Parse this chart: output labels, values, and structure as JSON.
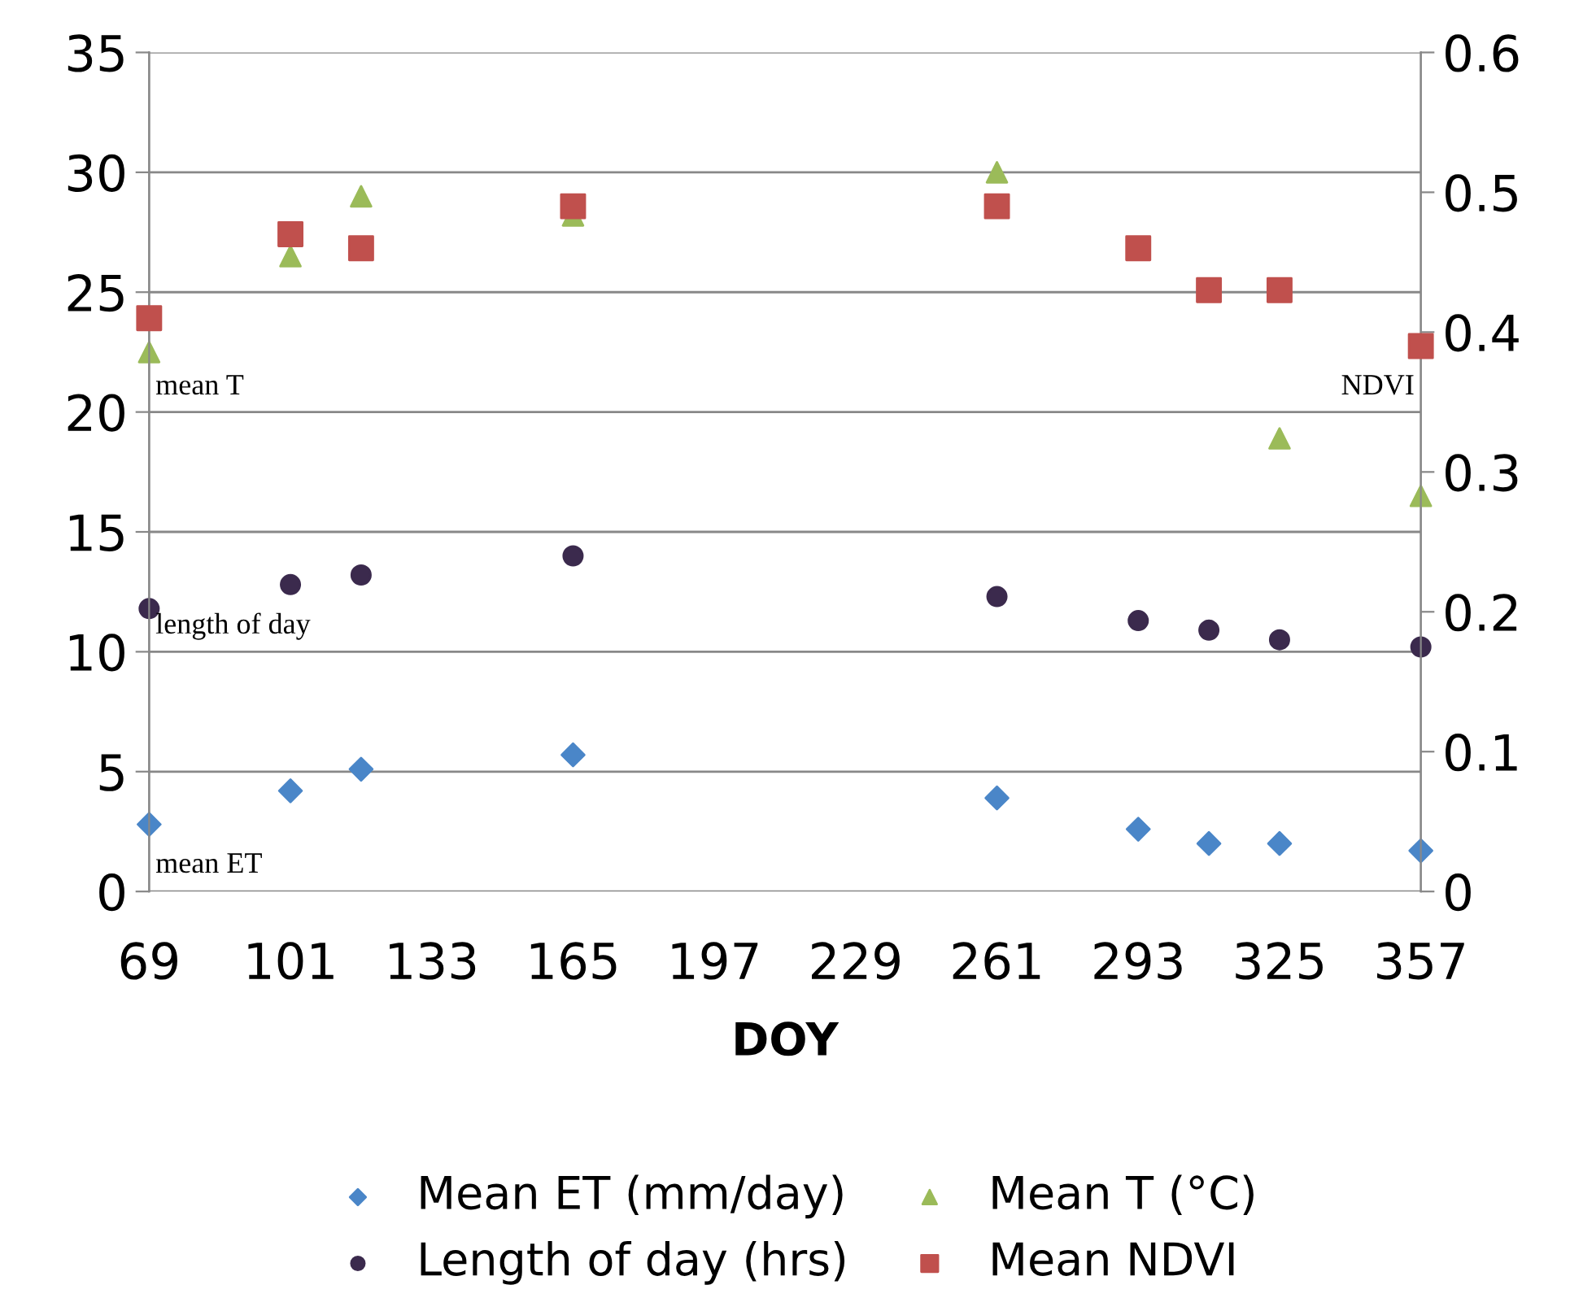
{
  "chart_data": {
    "type": "scatter",
    "xlabel": "DOY",
    "x": [
      69,
      101,
      117,
      165,
      261,
      293,
      309,
      325,
      357
    ],
    "series": [
      {
        "name": "Mean ET (mm/day)",
        "color": "#4a86c8",
        "marker": "diamond",
        "values": [
          2.8,
          4.2,
          5.1,
          5.7,
          3.9,
          2.6,
          2.0,
          2.0,
          1.7
        ]
      },
      {
        "name": "Mean T (°C)",
        "color": "#9bbb59",
        "marker": "triangle",
        "values": [
          22.5,
          26.5,
          29.0,
          28.2,
          30.0,
          null,
          null,
          18.9,
          16.5
        ]
      },
      {
        "name": "Length of day (hrs)",
        "color": "#3b2a4d",
        "marker": "circle",
        "values": [
          11.8,
          12.8,
          13.2,
          14.0,
          12.3,
          11.3,
          10.9,
          10.5,
          10.2
        ]
      },
      {
        "name": "Mean NDVI",
        "color": "#c0504d",
        "marker": "square",
        "axis": "y2",
        "values": [
          0.41,
          0.47,
          0.46,
          0.49,
          0.49,
          0.46,
          0.43,
          0.43,
          0.39
        ]
      }
    ],
    "xlim": [
      69,
      357
    ],
    "xticks": [
      69,
      101,
      133,
      165,
      197,
      229,
      261,
      293,
      325,
      357
    ],
    "ylim": [
      0,
      35
    ],
    "yticks": [
      0,
      5,
      10,
      15,
      20,
      25,
      30,
      35
    ],
    "y2lim": [
      0,
      0.6
    ],
    "y2ticks": [
      0,
      0.1,
      0.2,
      0.3,
      0.4,
      0.5,
      0.6
    ],
    "grid": "y",
    "legend": "bottom",
    "annotations": [
      "mean T",
      "length of day",
      "mean ET",
      "NDVI"
    ]
  }
}
